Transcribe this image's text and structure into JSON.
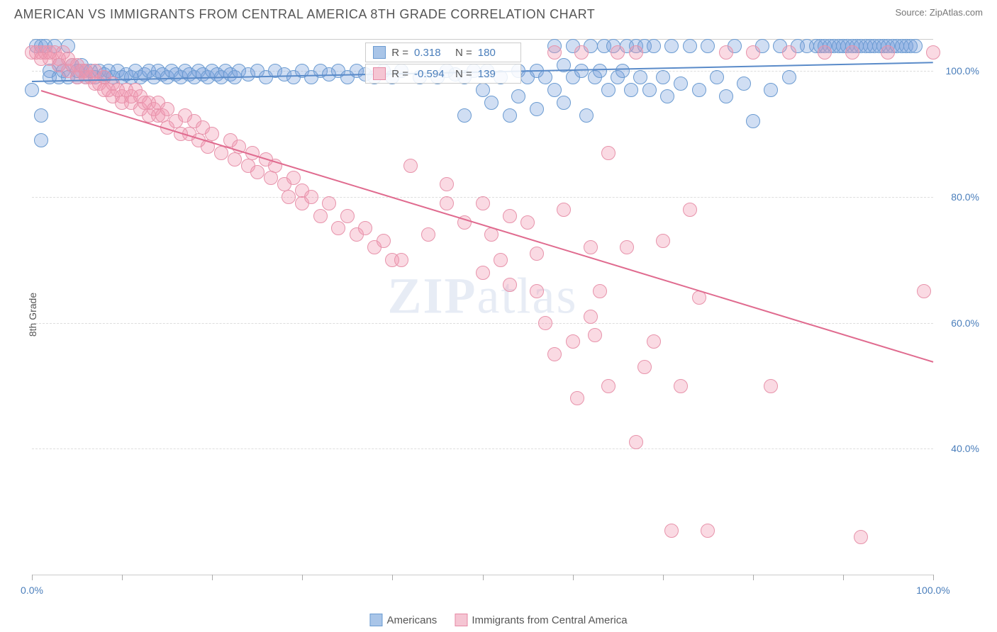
{
  "header": {
    "title": "AMERICAN VS IMMIGRANTS FROM CENTRAL AMERICA 8TH GRADE CORRELATION CHART",
    "source_prefix": "Source: ",
    "source_name": "ZipAtlas.com"
  },
  "watermark": {
    "text_bold": "ZIP",
    "text_light": "atlas"
  },
  "chart": {
    "type": "scatter",
    "y_axis_label": "8th Grade",
    "xlim": [
      0,
      100
    ],
    "ylim": [
      20,
      105
    ],
    "y_ticks": [
      40,
      60,
      80,
      100
    ],
    "y_tick_labels": [
      "40.0%",
      "60.0%",
      "80.0%",
      "100.0%"
    ],
    "x_ticks": [
      0,
      10,
      20,
      30,
      40,
      50,
      60,
      70,
      80,
      90,
      100
    ],
    "x_tick_labels_left": "0.0%",
    "x_tick_labels_right": "100.0%",
    "grid_color": "#dddddd",
    "background": "#ffffff",
    "marker_radius": 10,
    "marker_stroke_width": 1.5,
    "series": [
      {
        "name": "Americans",
        "color_fill": "rgba(120,160,220,0.35)",
        "color_stroke": "#6b9bd1",
        "swatch_fill": "#a9c5e8",
        "swatch_stroke": "#6b9bd1",
        "stats": {
          "R_label": "R =",
          "R_value": "0.318",
          "N_label": "N =",
          "N_value": "180"
        },
        "trend": {
          "x1": 0,
          "y1": 98.5,
          "x2": 100,
          "y2": 101.5,
          "color": "#5a8bc9",
          "width": 2
        },
        "points": [
          [
            0,
            97
          ],
          [
            0.5,
            104
          ],
          [
            1,
            104
          ],
          [
            1,
            93
          ],
          [
            1,
            89
          ],
          [
            1.5,
            104
          ],
          [
            2,
            100
          ],
          [
            2,
            99
          ],
          [
            2.5,
            104
          ],
          [
            3,
            101
          ],
          [
            3,
            99
          ],
          [
            3.5,
            100
          ],
          [
            4,
            104
          ],
          [
            4,
            99
          ],
          [
            4.5,
            101
          ],
          [
            5,
            99
          ],
          [
            5,
            100
          ],
          [
            5.5,
            101
          ],
          [
            6,
            100
          ],
          [
            6,
            99
          ],
          [
            6.5,
            100
          ],
          [
            7,
            99
          ],
          [
            7.5,
            100
          ],
          [
            8,
            99
          ],
          [
            8,
            99.5
          ],
          [
            8.5,
            100
          ],
          [
            9,
            99
          ],
          [
            9.5,
            100
          ],
          [
            10,
            99
          ],
          [
            10.5,
            99.5
          ],
          [
            11,
            99
          ],
          [
            11.5,
            100
          ],
          [
            12,
            99
          ],
          [
            12.5,
            99.5
          ],
          [
            13,
            100
          ],
          [
            13.5,
            99
          ],
          [
            14,
            100
          ],
          [
            14.5,
            99.5
          ],
          [
            15,
            99
          ],
          [
            15.5,
            100
          ],
          [
            16,
            99.5
          ],
          [
            16.5,
            99
          ],
          [
            17,
            100
          ],
          [
            17.5,
            99.5
          ],
          [
            18,
            99
          ],
          [
            18.5,
            100
          ],
          [
            19,
            99.5
          ],
          [
            19.5,
            99
          ],
          [
            20,
            100
          ],
          [
            20.5,
            99.5
          ],
          [
            21,
            99
          ],
          [
            21.5,
            100
          ],
          [
            22,
            99.5
          ],
          [
            22.5,
            99
          ],
          [
            23,
            100
          ],
          [
            24,
            99.5
          ],
          [
            25,
            100
          ],
          [
            26,
            99
          ],
          [
            27,
            100
          ],
          [
            28,
            99.5
          ],
          [
            29,
            99
          ],
          [
            30,
            100
          ],
          [
            31,
            99
          ],
          [
            32,
            100
          ],
          [
            33,
            99.5
          ],
          [
            34,
            100
          ],
          [
            35,
            99
          ],
          [
            36,
            100
          ],
          [
            37,
            99.5
          ],
          [
            38,
            99
          ],
          [
            39,
            100
          ],
          [
            40,
            99
          ],
          [
            41,
            100
          ],
          [
            43,
            99
          ],
          [
            45,
            99
          ],
          [
            46,
            100
          ],
          [
            47,
            99.5
          ],
          [
            48,
            99
          ],
          [
            48,
            93
          ],
          [
            49,
            100
          ],
          [
            50,
            97
          ],
          [
            50.5,
            100
          ],
          [
            51,
            95
          ],
          [
            52,
            99
          ],
          [
            53,
            93
          ],
          [
            54,
            100
          ],
          [
            54,
            96
          ],
          [
            55,
            99
          ],
          [
            56,
            100
          ],
          [
            56,
            94
          ],
          [
            57,
            99
          ],
          [
            58,
            104
          ],
          [
            58,
            97
          ],
          [
            59,
            95
          ],
          [
            59,
            101
          ],
          [
            60,
            99
          ],
          [
            60,
            104
          ],
          [
            61,
            100
          ],
          [
            61.5,
            93
          ],
          [
            62,
            104
          ],
          [
            62.5,
            99
          ],
          [
            63,
            100
          ],
          [
            63.5,
            104
          ],
          [
            64,
            97
          ],
          [
            64.5,
            104
          ],
          [
            65,
            99
          ],
          [
            65.5,
            100
          ],
          [
            66,
            104
          ],
          [
            66.5,
            97
          ],
          [
            67,
            104
          ],
          [
            67.5,
            99
          ],
          [
            68,
            104
          ],
          [
            68.5,
            97
          ],
          [
            69,
            104
          ],
          [
            70,
            99
          ],
          [
            70.5,
            96
          ],
          [
            71,
            104
          ],
          [
            72,
            98
          ],
          [
            73,
            104
          ],
          [
            74,
            97
          ],
          [
            75,
            104
          ],
          [
            76,
            99
          ],
          [
            77,
            96
          ],
          [
            78,
            104
          ],
          [
            79,
            98
          ],
          [
            80,
            92
          ],
          [
            81,
            104
          ],
          [
            82,
            97
          ],
          [
            83,
            104
          ],
          [
            84,
            99
          ],
          [
            85,
            104
          ],
          [
            86,
            104
          ],
          [
            87,
            104
          ],
          [
            87.5,
            104
          ],
          [
            88,
            104
          ],
          [
            88.5,
            104
          ],
          [
            89,
            104
          ],
          [
            89.5,
            104
          ],
          [
            90,
            104
          ],
          [
            90.5,
            104
          ],
          [
            91,
            104
          ],
          [
            91.5,
            104
          ],
          [
            92,
            104
          ],
          [
            92.5,
            104
          ],
          [
            93,
            104
          ],
          [
            93.5,
            104
          ],
          [
            94,
            104
          ],
          [
            94.5,
            104
          ],
          [
            95,
            104
          ],
          [
            95.5,
            104
          ],
          [
            96,
            104
          ],
          [
            96.5,
            104
          ],
          [
            97,
            104
          ],
          [
            97.5,
            104
          ],
          [
            98,
            104
          ]
        ]
      },
      {
        "name": "Immigrants from Central America",
        "color_fill": "rgba(240,150,175,0.35)",
        "color_stroke": "#e793ab",
        "swatch_fill": "#f5c5d3",
        "swatch_stroke": "#e68aa5",
        "stats": {
          "R_label": "R =",
          "R_value": "-0.594",
          "N_label": "N =",
          "N_value": "139"
        },
        "trend": {
          "x1": 1,
          "y1": 97,
          "x2": 100,
          "y2": 54,
          "color": "#e06b8f",
          "width": 2
        },
        "points": [
          [
            0,
            103
          ],
          [
            0.5,
            103
          ],
          [
            1,
            103
          ],
          [
            1,
            102
          ],
          [
            1.5,
            103
          ],
          [
            2,
            103
          ],
          [
            2,
            102
          ],
          [
            2.5,
            103
          ],
          [
            3,
            102
          ],
          [
            3,
            101
          ],
          [
            3.5,
            103
          ],
          [
            4,
            102
          ],
          [
            4,
            100
          ],
          [
            4.5,
            101
          ],
          [
            5,
            99
          ],
          [
            5,
            101
          ],
          [
            5.5,
            100
          ],
          [
            6,
            99
          ],
          [
            6,
            100
          ],
          [
            6.5,
            99
          ],
          [
            7,
            98
          ],
          [
            7,
            100
          ],
          [
            7.5,
            98
          ],
          [
            8,
            97
          ],
          [
            8,
            99
          ],
          [
            8.5,
            97
          ],
          [
            9,
            98
          ],
          [
            9,
            96
          ],
          [
            9.5,
            97
          ],
          [
            10,
            96
          ],
          [
            10,
            95
          ],
          [
            10.5,
            97
          ],
          [
            11,
            95
          ],
          [
            11,
            96
          ],
          [
            11.5,
            97
          ],
          [
            12,
            94
          ],
          [
            12,
            96
          ],
          [
            12.5,
            95
          ],
          [
            13,
            93
          ],
          [
            13,
            95
          ],
          [
            13.5,
            94
          ],
          [
            14,
            93
          ],
          [
            14,
            95
          ],
          [
            14.5,
            93
          ],
          [
            15,
            91
          ],
          [
            15,
            94
          ],
          [
            16,
            92
          ],
          [
            16.5,
            90
          ],
          [
            17,
            93
          ],
          [
            17.5,
            90
          ],
          [
            18,
            92
          ],
          [
            18.5,
            89
          ],
          [
            19,
            91
          ],
          [
            19.5,
            88
          ],
          [
            20,
            90
          ],
          [
            21,
            87
          ],
          [
            22,
            89
          ],
          [
            22.5,
            86
          ],
          [
            23,
            88
          ],
          [
            24,
            85
          ],
          [
            24.5,
            87
          ],
          [
            25,
            84
          ],
          [
            26,
            86
          ],
          [
            26.5,
            83
          ],
          [
            27,
            85
          ],
          [
            28,
            82
          ],
          [
            28.5,
            80
          ],
          [
            29,
            83
          ],
          [
            30,
            79
          ],
          [
            30,
            81
          ],
          [
            31,
            80
          ],
          [
            32,
            77
          ],
          [
            33,
            79
          ],
          [
            34,
            75
          ],
          [
            35,
            77
          ],
          [
            36,
            74
          ],
          [
            37,
            75
          ],
          [
            38,
            72
          ],
          [
            39,
            73
          ],
          [
            40,
            70
          ],
          [
            41,
            70
          ],
          [
            42,
            85
          ],
          [
            44,
            74
          ],
          [
            46,
            82
          ],
          [
            46,
            79
          ],
          [
            48,
            76
          ],
          [
            50,
            79
          ],
          [
            50,
            68
          ],
          [
            51,
            74
          ],
          [
            52,
            70
          ],
          [
            53,
            66
          ],
          [
            53,
            77
          ],
          [
            55,
            76
          ],
          [
            56,
            65
          ],
          [
            56,
            71
          ],
          [
            57,
            60
          ],
          [
            58,
            103
          ],
          [
            58,
            55
          ],
          [
            59,
            78
          ],
          [
            60,
            57
          ],
          [
            60.5,
            48
          ],
          [
            61,
            103
          ],
          [
            62,
            72
          ],
          [
            62,
            61
          ],
          [
            62.5,
            58
          ],
          [
            63,
            65
          ],
          [
            64,
            50
          ],
          [
            64,
            87
          ],
          [
            65,
            103
          ],
          [
            66,
            72
          ],
          [
            67,
            103
          ],
          [
            67,
            41
          ],
          [
            68,
            53
          ],
          [
            69,
            57
          ],
          [
            70,
            73
          ],
          [
            71,
            27
          ],
          [
            72,
            50
          ],
          [
            73,
            78
          ],
          [
            74,
            64
          ],
          [
            75,
            27
          ],
          [
            77,
            103
          ],
          [
            80,
            103
          ],
          [
            82,
            50
          ],
          [
            84,
            103
          ],
          [
            88,
            103
          ],
          [
            91,
            103
          ],
          [
            92,
            26
          ],
          [
            95,
            103
          ],
          [
            99,
            65
          ],
          [
            100,
            103
          ]
        ]
      }
    ],
    "legend": [
      {
        "label": "Americans",
        "fill": "#a9c5e8",
        "stroke": "#6b9bd1"
      },
      {
        "label": "Immigrants from Central America",
        "fill": "#f5c5d3",
        "stroke": "#e68aa5"
      }
    ]
  }
}
